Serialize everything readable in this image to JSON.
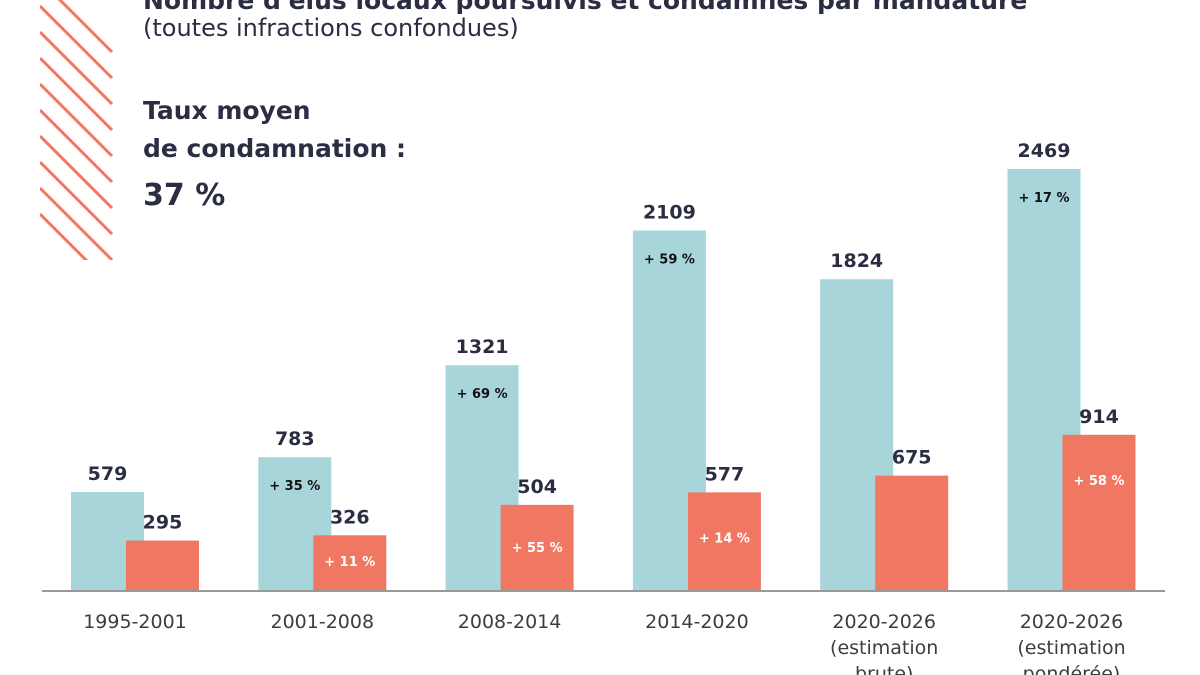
{
  "title": "Nombre d'élus locaux poursuivis et condamnés par mandature",
  "subtitle": "(toutes infractions confondues)",
  "rate_label_line1": "Taux moyen",
  "rate_label_line2": "de condamnation :",
  "rate_value": "37 %",
  "colors": {
    "poursuivis": "#a8d5da",
    "condamnes": "#f07862",
    "stripes": "#f07862",
    "axis": "#999999",
    "text": "#2b2d42"
  },
  "chart_data": {
    "type": "bar",
    "categories": [
      [
        "1995-2001"
      ],
      [
        "2001-2008"
      ],
      [
        "2008-2014"
      ],
      [
        "2014-2020"
      ],
      [
        "2020-2026",
        "(estimation",
        "brute)"
      ],
      [
        "2020-2026",
        "(estimation",
        "pondérée)"
      ]
    ],
    "series": [
      {
        "values": [
          579,
          783,
          1321,
          2109,
          1824,
          2469
        ],
        "growth_labels": [
          "",
          "+ 35 %",
          "+ 69 %",
          "+ 59 %",
          "",
          "+ 17 %"
        ]
      },
      {
        "values": [
          295,
          326,
          504,
          577,
          675,
          914
        ],
        "growth_labels": [
          "",
          "+ 11 %",
          "+ 55 %",
          "+ 14 %",
          "",
          "+ 58 %"
        ]
      }
    ],
    "ylim": [
      0,
      2469
    ],
    "grid": false
  }
}
